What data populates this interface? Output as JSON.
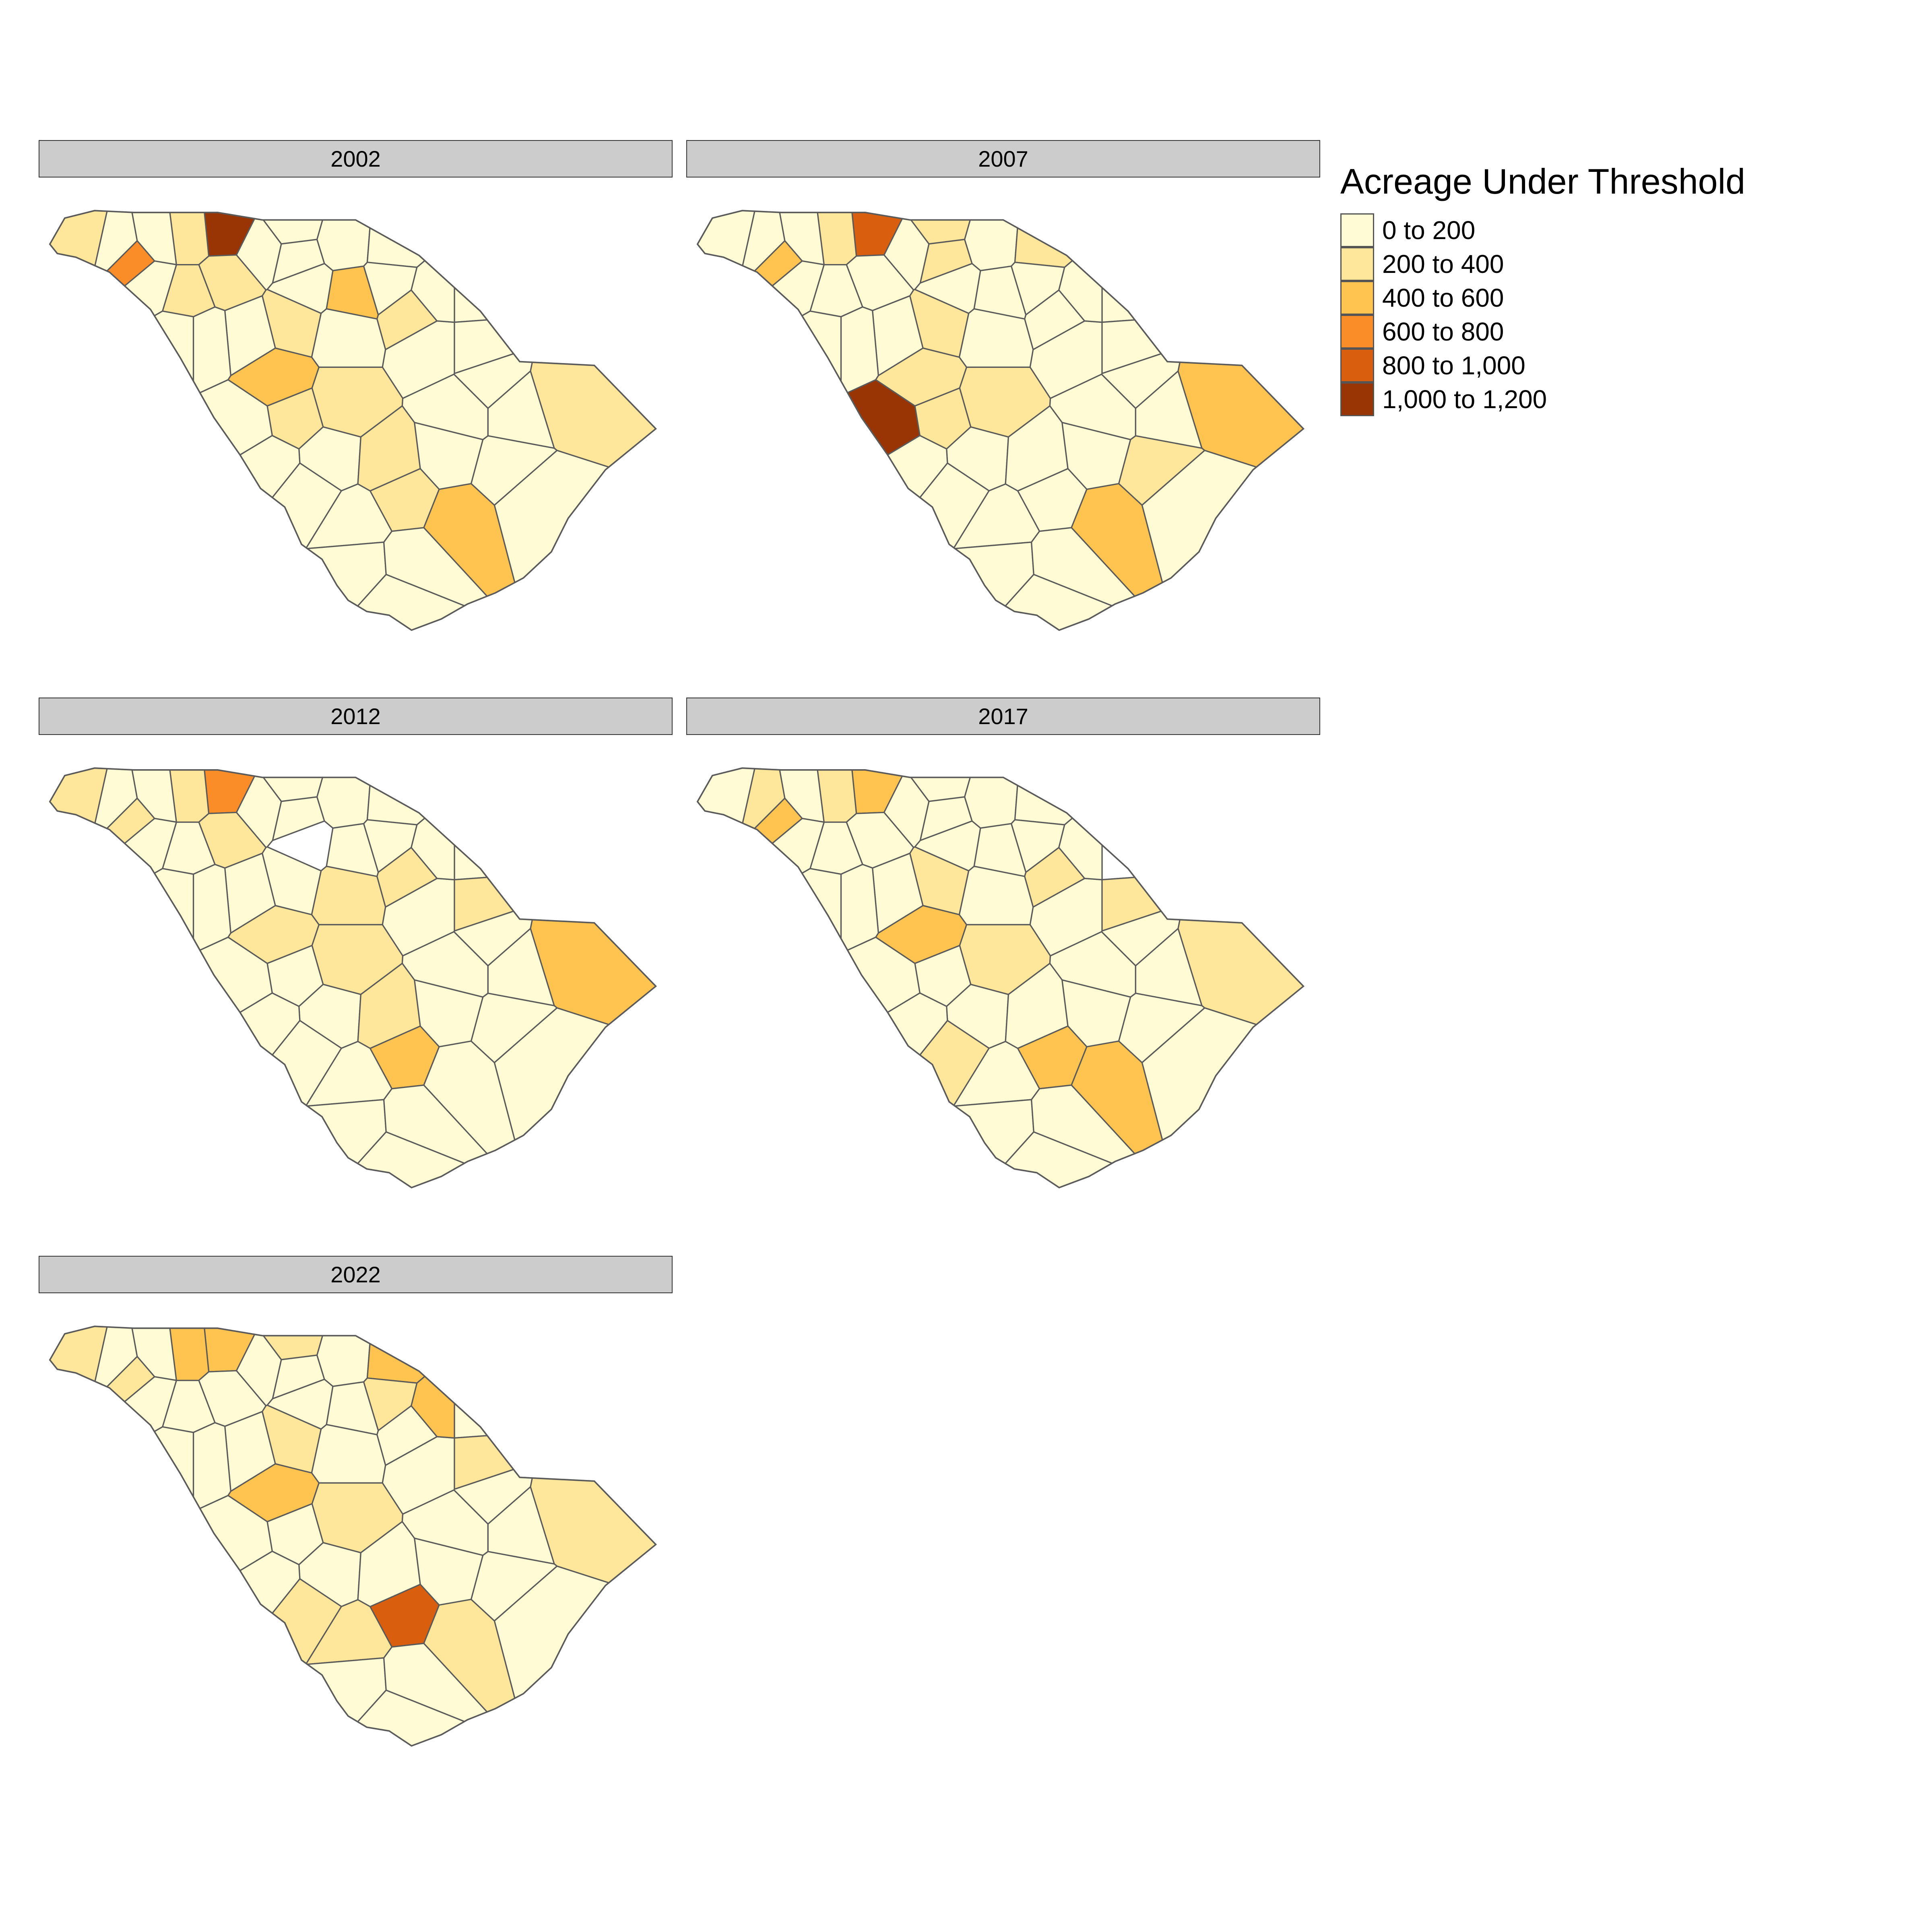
{
  "legend": {
    "title": "Acreage Under Threshold",
    "classes": [
      {
        "label": "0 to 200",
        "color": "#FFFBD4"
      },
      {
        "label": "200 to 400",
        "color": "#FEE79A"
      },
      {
        "label": "400 to 600",
        "color": "#FEC44F"
      },
      {
        "label": "600 to 800",
        "color": "#FB8D29"
      },
      {
        "label": "800 to 1,000",
        "color": "#D95F0E"
      },
      {
        "label": "1,000 to 1,200",
        "color": "#993404"
      }
    ]
  },
  "missing_color": "#FFFFFF",
  "panels": [
    {
      "year": "2002",
      "highlights": {
        "c1": 5,
        "c2": 1,
        "c4": 3,
        "c5": 1,
        "c7": 1,
        "c14": 2,
        "c16": 1,
        "c17": 1,
        "c23": 1,
        "c24": 1,
        "c25": 2,
        "c26": 1,
        "c27": 1,
        "c29": 1,
        "c31": 2,
        "c32": 1
      }
    },
    {
      "year": "2007",
      "highlights": {
        "c1": 4,
        "c2": 1,
        "c4": 2,
        "c8": 1,
        "c9": 1,
        "c12": 1,
        "c17": 1,
        "c24": 2,
        "c25": 1,
        "c26": 1,
        "c27": 1,
        "c30": 5,
        "c31": 2,
        "c35": 1
      }
    },
    {
      "year": "2012",
      "highlights": {
        "c1": 3,
        "c2": 1,
        "c4": 1,
        "c5": 1,
        "c7": 1,
        "c13": -1,
        "c16": 1,
        "c18": 1,
        "c21": 1,
        "c24": 2,
        "c25": 1,
        "c26": 1,
        "c29": 2,
        "c32": 1
      }
    },
    {
      "year": "2017",
      "highlights": {
        "c1": 2,
        "c2": 1,
        "c4": 2,
        "c6": 1,
        "c16": 1,
        "c17": 1,
        "c20": -1,
        "c21": 1,
        "c24": 1,
        "c25": 2,
        "c26": 1,
        "c29": 2,
        "c31": 2,
        "c33": 1
      }
    },
    {
      "year": "2022",
      "highlights": {
        "c1": 2,
        "c2": 2,
        "c4": 1,
        "c5": 1,
        "c8": 1,
        "c12": 2,
        "c15": 1,
        "c17": 1,
        "c21": 1,
        "c22": 2,
        "c24": 1,
        "c25": 2,
        "c26": 1,
        "c29": 4,
        "c31": 1,
        "c33": 1,
        "c34": 1
      }
    }
  ]
}
